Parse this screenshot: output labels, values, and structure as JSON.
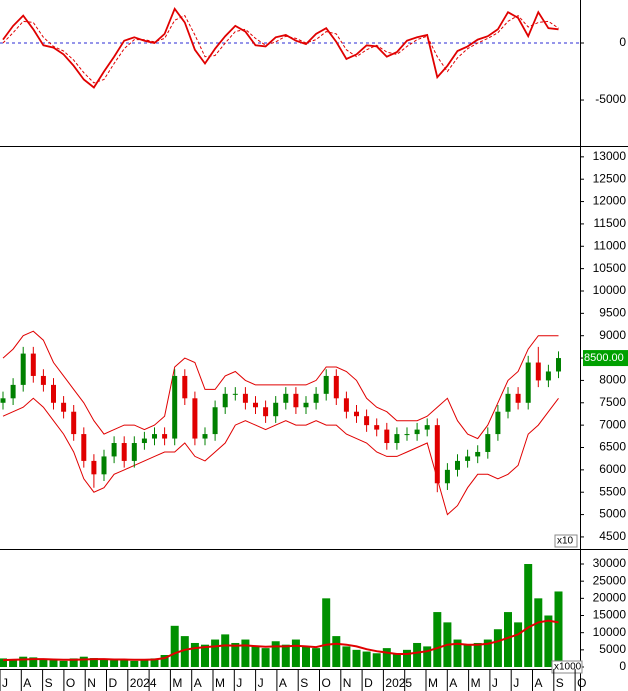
{
  "chart_data": [
    {
      "type": "line",
      "ylim": [
        -9030,
        3770
      ],
      "yticks": [
        0,
        -5000
      ],
      "zero_line_color": "#2b2bd6",
      "series": [
        {
          "color": "#e00000",
          "style": "solid",
          "values": [
            300,
            1500,
            2400,
            1200,
            -200,
            -400,
            -1000,
            -2000,
            -3200,
            -3900,
            -2500,
            -1200,
            200,
            500,
            200,
            0,
            800,
            3000,
            1800,
            -600,
            -1800,
            -500,
            600,
            1500,
            1000,
            -200,
            -300,
            500,
            700,
            200,
            -100,
            800,
            1300,
            100,
            -1400,
            -1000,
            -200,
            -300,
            -1200,
            -800,
            200,
            500,
            700,
            -3000,
            -2000,
            -700,
            -300,
            300,
            600,
            1200,
            2700,
            2200,
            600,
            2700,
            1300,
            1200
          ]
        },
        {
          "color": "#e00000",
          "style": "dashed",
          "values": [
            0,
            900,
            1900,
            1800,
            500,
            -300,
            -700,
            -1500,
            -2600,
            -3500,
            -3200,
            -1800,
            -500,
            300,
            300,
            100,
            400,
            2000,
            2400,
            700,
            -1200,
            -1100,
            0,
            1000,
            1200,
            400,
            -200,
            100,
            600,
            400,
            0,
            300,
            1000,
            800,
            -600,
            -1200,
            -600,
            -200,
            -800,
            -1000,
            -300,
            300,
            600,
            -1200,
            -2500,
            -1300,
            -500,
            0,
            400,
            900,
            1900,
            2400,
            1400,
            1800,
            1900,
            1300
          ]
        }
      ]
    },
    {
      "type": "candlestick",
      "ylim": [
        4230,
        13220
      ],
      "unit_label": "x10",
      "yticks": [
        4500,
        5000,
        5500,
        6000,
        6500,
        7000,
        7500,
        8000,
        8500,
        9000,
        9500,
        10000,
        10500,
        11000,
        11500,
        12000,
        12500,
        13000
      ],
      "up_color": "#008000",
      "down_color": "#e00000",
      "band_color": "#e00000",
      "last_price": {
        "value": 8500,
        "label": "8500.00",
        "color": "#00a000"
      },
      "open": [
        7500,
        7600,
        7900,
        8600,
        8100,
        7900,
        7500,
        7300,
        6800,
        6200,
        5900,
        6300,
        6600,
        6200,
        6600,
        6700,
        6800,
        6700,
        8100,
        7600,
        6700,
        6800,
        7400,
        7700,
        7700,
        7500,
        7400,
        7200,
        7500,
        7700,
        7400,
        7500,
        7700,
        8100,
        7600,
        7300,
        7200,
        7000,
        6900,
        6600,
        6800,
        6800,
        6900,
        7000,
        5700,
        6000,
        6200,
        6300,
        6400,
        6800,
        7300,
        7700,
        7500,
        8400,
        8000,
        8200
      ],
      "high": [
        7750,
        8050,
        8750,
        8750,
        8250,
        8050,
        7650,
        7450,
        6950,
        6350,
        6450,
        6750,
        6750,
        6750,
        6850,
        6950,
        6950,
        8250,
        8250,
        7750,
        6950,
        7550,
        7850,
        7850,
        7850,
        7650,
        7550,
        7650,
        7850,
        7850,
        7650,
        7850,
        8250,
        8250,
        7750,
        7450,
        7350,
        7150,
        7050,
        6950,
        6950,
        7050,
        7150,
        7150,
        6150,
        6350,
        6450,
        6550,
        6950,
        7450,
        7850,
        7850,
        8550,
        8750,
        8350,
        8650
      ],
      "low": [
        7350,
        7450,
        7750,
        7950,
        7750,
        7350,
        7150,
        6650,
        6050,
        5600,
        5750,
        6150,
        6050,
        6050,
        6450,
        6550,
        6550,
        6550,
        7450,
        6550,
        6550,
        6650,
        7250,
        7550,
        7350,
        7250,
        7050,
        7050,
        7350,
        7250,
        7250,
        7350,
        7550,
        7450,
        7150,
        7050,
        6850,
        6750,
        6450,
        6450,
        6650,
        6650,
        6750,
        5500,
        5550,
        5850,
        6050,
        6150,
        6250,
        6650,
        7150,
        7350,
        7350,
        7850,
        7850,
        8050
      ],
      "close": [
        7600,
        7900,
        8600,
        8100,
        7900,
        7500,
        7300,
        6800,
        6200,
        5900,
        6300,
        6600,
        6200,
        6600,
        6700,
        6800,
        6700,
        8100,
        7600,
        6700,
        6800,
        7400,
        7700,
        7700,
        7500,
        7400,
        7200,
        7500,
        7700,
        7400,
        7500,
        7700,
        8100,
        7600,
        7300,
        7200,
        7000,
        6900,
        6600,
        6800,
        6800,
        6900,
        7000,
        5700,
        6000,
        6200,
        6300,
        6400,
        6800,
        7300,
        7700,
        7500,
        8400,
        8000,
        8200,
        8500
      ],
      "upper_band": [
        8500,
        8700,
        9000,
        9100,
        8900,
        8400,
        8100,
        7800,
        7500,
        7100,
        6800,
        6900,
        7000,
        7000,
        6900,
        7000,
        7200,
        8300,
        8500,
        8400,
        7800,
        7800,
        8100,
        8200,
        8000,
        7900,
        7900,
        7900,
        7900,
        7900,
        7900,
        8000,
        8300,
        8300,
        8200,
        8000,
        7600,
        7400,
        7300,
        7100,
        7100,
        7100,
        7200,
        7400,
        7600,
        7100,
        6800,
        6700,
        7000,
        7500,
        8000,
        8200,
        8700,
        9000,
        9000,
        9000
      ],
      "lower_band": [
        7200,
        7300,
        7400,
        7600,
        7400,
        7100,
        6800,
        6400,
        5800,
        5500,
        5600,
        5900,
        6000,
        6100,
        6200,
        6300,
        6400,
        6400,
        6600,
        6300,
        6200,
        6400,
        6600,
        7000,
        7100,
        7000,
        6900,
        7000,
        7100,
        7000,
        7000,
        7100,
        7000,
        7000,
        6800,
        6700,
        6600,
        6400,
        6300,
        6300,
        6400,
        6500,
        6600,
        5800,
        5000,
        5200,
        5600,
        5900,
        5900,
        5800,
        5900,
        6100,
        6800,
        7000,
        7300,
        7600
      ]
    },
    {
      "type": "bar",
      "ylim": [
        -290,
        34080
      ],
      "unit_label": "x1000",
      "yticks": [
        0,
        5000,
        10000,
        15000,
        20000,
        25000,
        30000
      ],
      "color": "#009000",
      "ma_color": "#e00000",
      "values": [
        2500,
        2000,
        3000,
        2800,
        2200,
        2000,
        1800,
        2500,
        3000,
        2600,
        2200,
        2000,
        2300,
        1800,
        2200,
        2500,
        3500,
        12000,
        9000,
        7000,
        6500,
        8000,
        9500,
        7000,
        8000,
        6000,
        5500,
        7500,
        6500,
        8000,
        6000,
        5500,
        20000,
        9000,
        6000,
        5000,
        4500,
        4000,
        5500,
        4000,
        5000,
        7000,
        6000,
        16000,
        13000,
        8000,
        6500,
        7000,
        8000,
        11000,
        16000,
        13000,
        30000,
        20000,
        15000,
        22000
      ],
      "ma": [
        2000,
        2100,
        2200,
        2300,
        2300,
        2200,
        2100,
        2100,
        2200,
        2300,
        2300,
        2200,
        2200,
        2100,
        2100,
        2200,
        2600,
        4000,
        5000,
        5500,
        5800,
        6000,
        6300,
        6200,
        6300,
        6100,
        5900,
        6000,
        6000,
        6200,
        6000,
        5800,
        6500,
        6800,
        6500,
        6000,
        5200,
        4600,
        4200,
        3800,
        3800,
        4200,
        4600,
        5500,
        6500,
        6800,
        6500,
        6500,
        6800,
        7500,
        8500,
        9500,
        11500,
        13000,
        13500,
        13000
      ]
    }
  ],
  "time_axis": {
    "labels": [
      "J",
      "A",
      "S",
      "O",
      "N",
      "D",
      "2024",
      null,
      "M",
      "A",
      "M",
      "J",
      "J",
      "A",
      "S",
      "O",
      "N",
      "D",
      "2025",
      null,
      "M",
      "A",
      "M",
      "J",
      "J",
      "A",
      "S",
      "O"
    ]
  }
}
